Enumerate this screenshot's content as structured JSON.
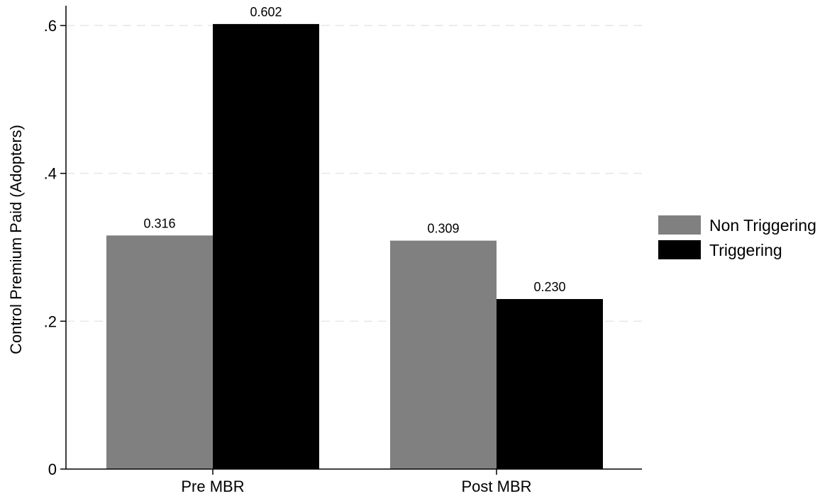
{
  "chart_data": {
    "type": "bar",
    "title": "",
    "xlabel": "",
    "ylabel": "Control Premium Paid (Adopters)",
    "categories": [
      "Pre MBR",
      "Post MBR"
    ],
    "series": [
      {
        "name": "Non Triggering",
        "color": "#808080",
        "values": [
          0.316,
          0.309
        ],
        "labels": [
          "0.316",
          "0.309"
        ]
      },
      {
        "name": "Triggering",
        "color": "#000000",
        "values": [
          0.602,
          0.23
        ],
        "labels": [
          "0.602",
          "0.230"
        ]
      }
    ],
    "ylim": [
      0,
      0.6
    ],
    "yticks": [
      0,
      0.2,
      0.4,
      0.6
    ],
    "ytick_labels": [
      "0",
      ".2",
      ".4",
      ".6"
    ],
    "grid": "horizontal dashed",
    "legend_position": "right"
  }
}
